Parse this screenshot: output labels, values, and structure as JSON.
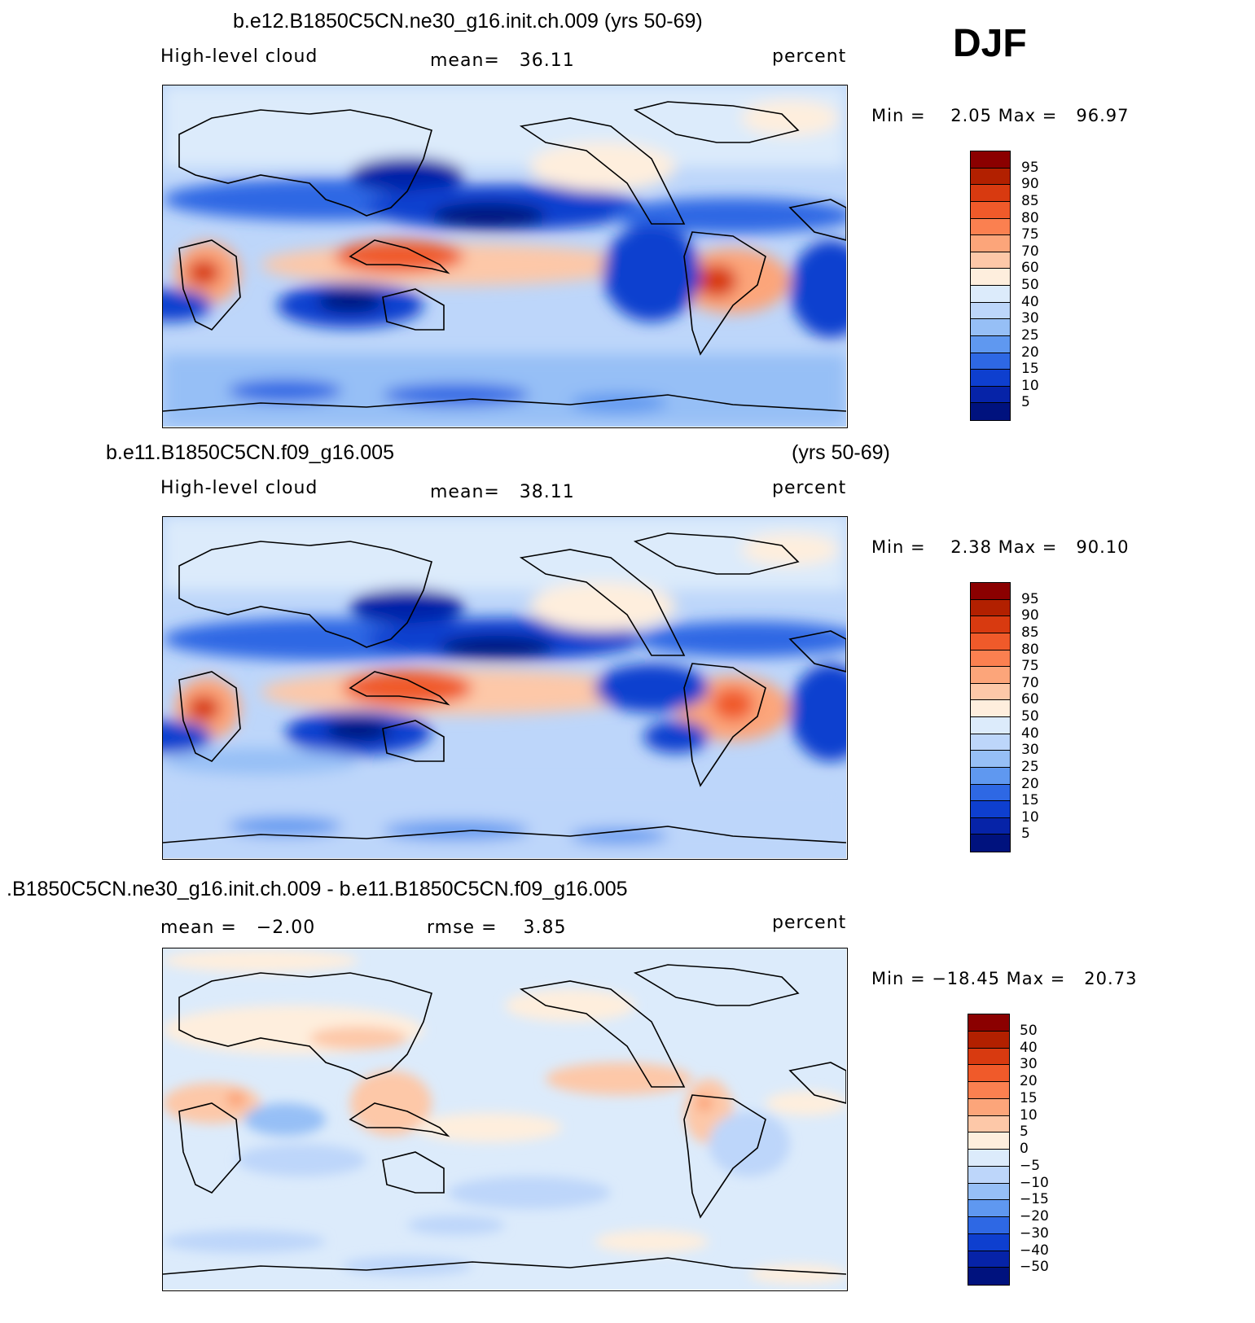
{
  "season": "DJF",
  "panels": [
    {
      "title": "b.e12.B1850C5CN.ne30_g16.init.ch.009 (yrs 50-69)",
      "left_label": "High-level cloud",
      "center_label": "mean=   36.11",
      "right_label": "percent",
      "minmax": "Min =    2.05 Max =   96.97",
      "levels": [
        "95",
        "90",
        "85",
        "80",
        "75",
        "70",
        "60",
        "50",
        "40",
        "30",
        "25",
        "20",
        "15",
        "10",
        "5"
      ],
      "colors": [
        "#8b0000",
        "#b22000",
        "#d83a10",
        "#f05a2a",
        "#fb8050",
        "#fca57a",
        "#fdc8a8",
        "#feeedd",
        "#dcebfb",
        "#bdd6fa",
        "#96bff6",
        "#5f98f0",
        "#2e68e4",
        "#0e3fcf",
        "#0623a8",
        "#00127e"
      ]
    },
    {
      "title_left": "b.e11.B1850C5CN.f09_g16.005",
      "title_right": "(yrs 50-69)",
      "left_label": "High-level cloud",
      "center_label": "mean=   38.11",
      "right_label": "percent",
      "minmax": "Min =    2.38 Max =   90.10",
      "levels": [
        "95",
        "90",
        "85",
        "80",
        "75",
        "70",
        "60",
        "50",
        "40",
        "30",
        "25",
        "20",
        "15",
        "10",
        "5"
      ],
      "colors": [
        "#8b0000",
        "#b22000",
        "#d83a10",
        "#f05a2a",
        "#fb8050",
        "#fca57a",
        "#fdc8a8",
        "#feeedd",
        "#dcebfb",
        "#bdd6fa",
        "#96bff6",
        "#5f98f0",
        "#2e68e4",
        "#0e3fcf",
        "#0623a8",
        "#00127e"
      ]
    },
    {
      "title": ".B1850C5CN.ne30_g16.init.ch.009 - b.e11.B1850C5CN.f09_g16.005",
      "left_label": "mean =   −2.00",
      "center_label": "rmse =    3.85",
      "right_label": "percent",
      "minmax": "Min = −18.45 Max =   20.73",
      "levels": [
        "50",
        "40",
        "30",
        "20",
        "15",
        "10",
        "5",
        "0",
        "−5",
        "−10",
        "−15",
        "−20",
        "−30",
        "−40",
        "−50"
      ],
      "colors": [
        "#8b0000",
        "#b22000",
        "#d83a10",
        "#f05a2a",
        "#fb8050",
        "#fca57a",
        "#fdc8a8",
        "#feeedd",
        "#dcebfb",
        "#bdd6fa",
        "#96bff6",
        "#5f98f0",
        "#2e68e4",
        "#0e3fcf",
        "#0623a8",
        "#00127e"
      ]
    }
  ]
}
